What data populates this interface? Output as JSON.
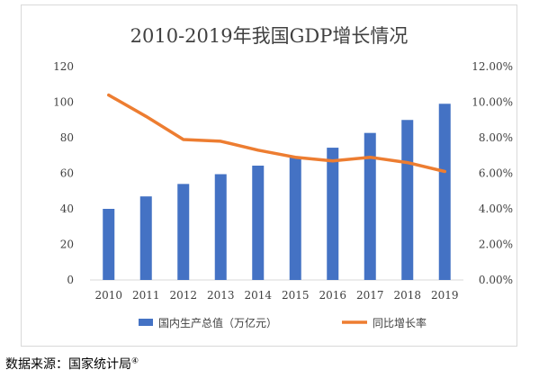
{
  "chart_data": {
    "type": "bar",
    "title": "2010-2019年我国GDP增长情况",
    "categories": [
      "2010",
      "2011",
      "2012",
      "2013",
      "2014",
      "2015",
      "2016",
      "2017",
      "2018",
      "2019"
    ],
    "series": [
      {
        "name": "国内生产总值（万亿元）",
        "type": "bar",
        "axis": "left",
        "color": "#4472c4",
        "values": [
          40,
          47,
          54,
          59.5,
          64.3,
          68.9,
          74.4,
          82.7,
          90,
          99.1
        ]
      },
      {
        "name": "同比增长率",
        "type": "line",
        "axis": "right",
        "color": "#ed7d31",
        "values": [
          0.104,
          0.092,
          0.079,
          0.078,
          0.073,
          0.069,
          0.067,
          0.069,
          0.066,
          0.061
        ]
      }
    ],
    "y_left": {
      "min": 0,
      "max": 120,
      "ticks": [
        "0",
        "20",
        "40",
        "60",
        "80",
        "100",
        "120"
      ]
    },
    "y_right": {
      "min": 0,
      "max": 0.12,
      "ticks": [
        "0.00%",
        "2.00%",
        "4.00%",
        "6.00%",
        "8.00%",
        "10.00%",
        "12.00%"
      ]
    },
    "grid": false,
    "legend_position": "bottom"
  },
  "source": {
    "label": "数据来源：国家统计局",
    "note_mark": "④"
  }
}
